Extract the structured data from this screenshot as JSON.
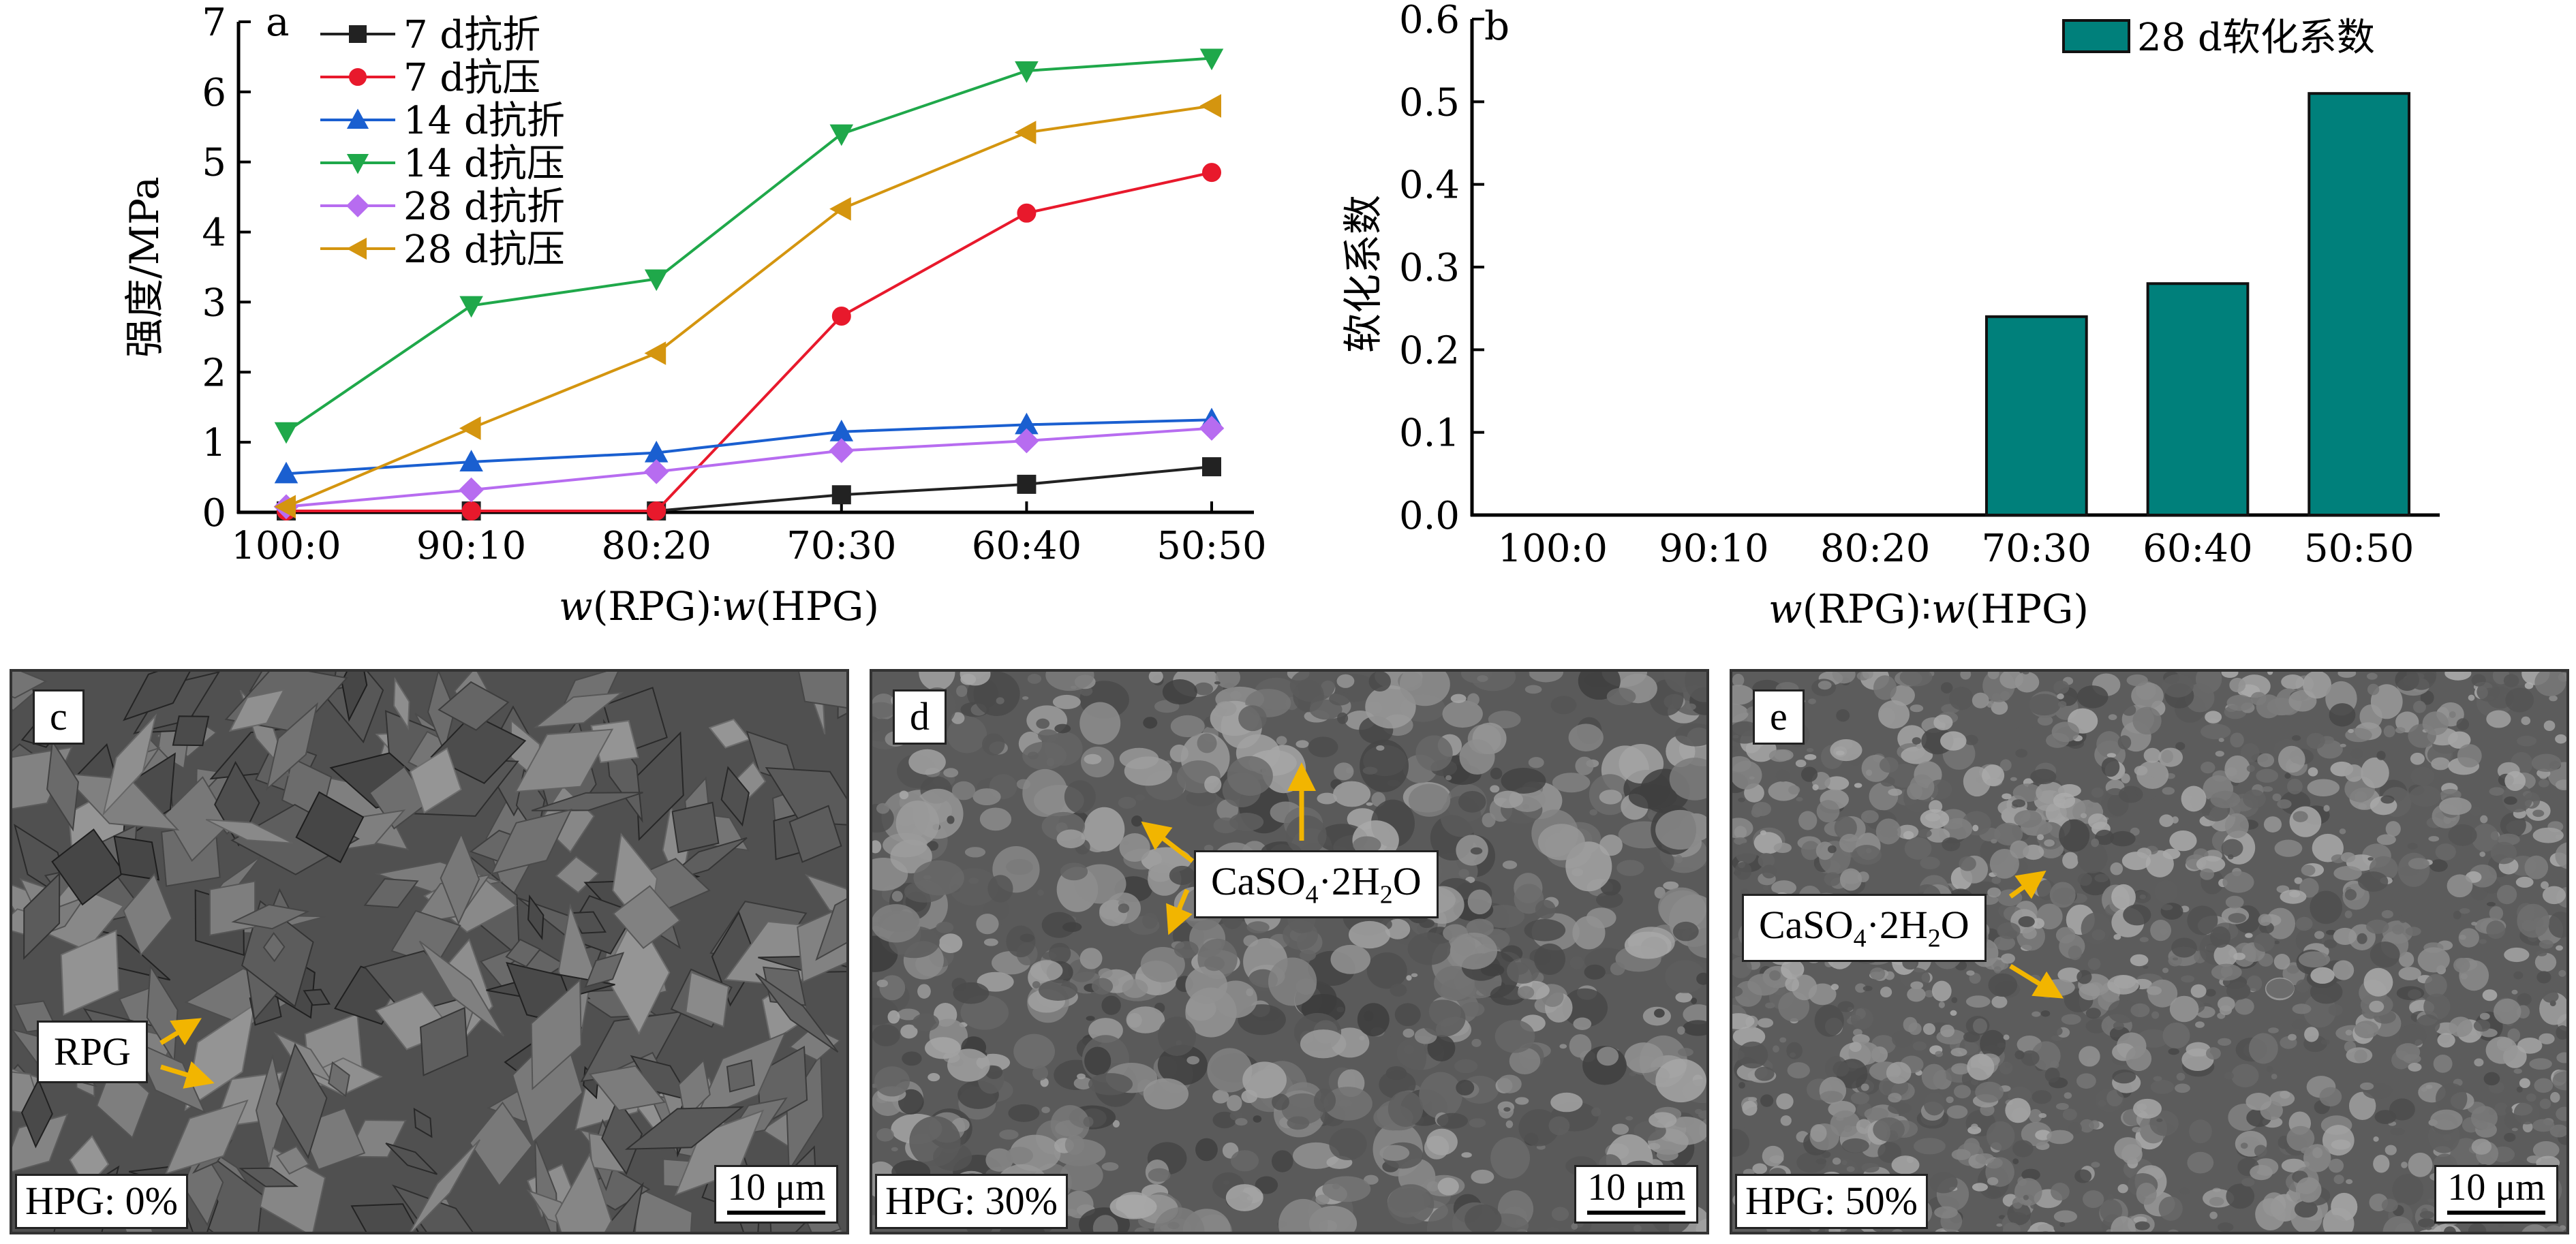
{
  "chart_data": [
    {
      "panel_label": "a",
      "type": "line",
      "categories": [
        "100:0",
        "90:10",
        "80:20",
        "70:30",
        "60:40",
        "50:50"
      ],
      "ylabel": "强度/MPa",
      "xlabel": "w(RPG)∶w(HPG)",
      "ylim": [
        0,
        7
      ],
      "yticks": [
        "0",
        "1",
        "2",
        "3",
        "4",
        "5",
        "6",
        "7"
      ],
      "legend": "top-left",
      "series": [
        {
          "name": "7 d抗折",
          "color": "#222222",
          "marker": "square",
          "values": [
            0.02,
            0.02,
            0.02,
            0.25,
            0.4,
            0.65
          ]
        },
        {
          "name": "7 d抗压",
          "color": "#e8192c",
          "marker": "circle",
          "values": [
            0.02,
            0.02,
            0.02,
            2.8,
            4.27,
            4.85
          ]
        },
        {
          "name": "14 d抗折",
          "color": "#1a5fd0",
          "marker": "triangle-up",
          "values": [
            0.55,
            0.72,
            0.85,
            1.15,
            1.25,
            1.32
          ]
        },
        {
          "name": "14 d抗压",
          "color": "#1fa84a",
          "marker": "triangle-down",
          "values": [
            1.15,
            2.95,
            3.33,
            5.4,
            6.3,
            6.48
          ]
        },
        {
          "name": "28 d抗折",
          "color": "#b76cf0",
          "marker": "diamond",
          "values": [
            0.08,
            0.32,
            0.58,
            0.88,
            1.02,
            1.2
          ]
        },
        {
          "name": "28 d抗压",
          "color": "#d4950f",
          "marker": "triangle-left",
          "values": [
            0.08,
            1.2,
            2.27,
            4.33,
            5.42,
            5.8
          ]
        }
      ]
    },
    {
      "panel_label": "b",
      "type": "bar",
      "categories": [
        "100:0",
        "90:10",
        "80:20",
        "70:30",
        "60:40",
        "50:50"
      ],
      "ylabel": "软化系数",
      "xlabel": "w(RPG)∶w(HPG)",
      "ylim": [
        0,
        0.6
      ],
      "yticks": [
        "0.0",
        "0.1",
        "0.2",
        "0.3",
        "0.4",
        "0.5",
        "0.6"
      ],
      "legend": "top-right",
      "series": [
        {
          "name": "28 d软化系数",
          "color": "#00807b",
          "values": [
            0,
            0,
            0,
            0.24,
            0.28,
            0.51
          ]
        }
      ]
    }
  ],
  "images": [
    {
      "label": "c",
      "hpg": "HPG: 0%",
      "scale": "10 μm",
      "annotation": "RPG"
    },
    {
      "label": "d",
      "hpg": "HPG: 30%",
      "scale": "10 μm",
      "annotation": "CaSO4·2H2O"
    },
    {
      "label": "e",
      "hpg": "HPG: 50%",
      "scale": "10 μm",
      "annotation": "CaSO4·2H2O"
    }
  ]
}
